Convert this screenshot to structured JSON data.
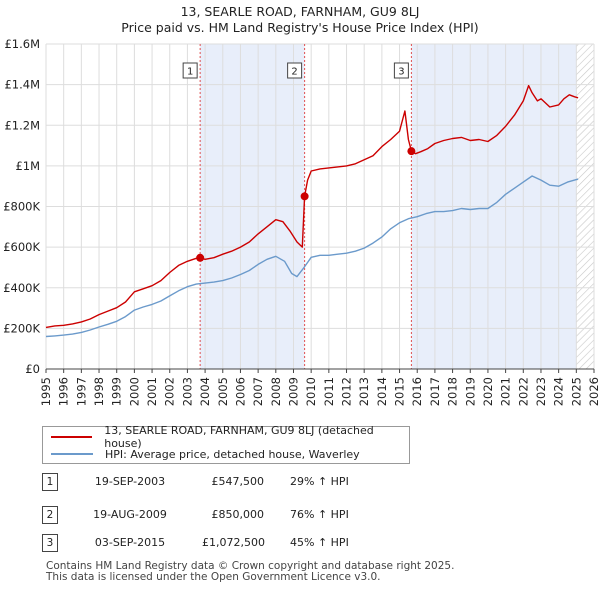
{
  "title_line1": "13, SEARLE ROAD, FARNHAM, GU9 8LJ",
  "title_line2": "Price paid vs. HM Land Registry's House Price Index (HPI)",
  "legend": [
    {
      "label": "13, SEARLE ROAD, FARNHAM, GU9 8LJ (detached house)",
      "color": "#cc0000"
    },
    {
      "label": "HPI: Average price, detached house, Waverley",
      "color": "#6b9acb"
    }
  ],
  "transactions": [
    {
      "num": "1",
      "date": "19-SEP-2003",
      "price": "£547,500",
      "hpi": "29% ↑ HPI"
    },
    {
      "num": "2",
      "date": "19-AUG-2009",
      "price": "£850,000",
      "hpi": "76% ↑ HPI"
    },
    {
      "num": "3",
      "date": "03-SEP-2015",
      "price": "£1,072,500",
      "hpi": "45% ↑ HPI"
    }
  ],
  "footer_line1": "Contains HM Land Registry data © Crown copyright and database right 2025.",
  "footer_line2": "This data is licensed under the Open Government Licence v3.0.",
  "chart_data": {
    "type": "line",
    "title": "13, SEARLE ROAD, FARNHAM, GU9 8LJ — Price paid vs. HM Land Registry's House Price Index (HPI)",
    "xlabel": "",
    "ylabel": "",
    "xlim": [
      1995,
      2026
    ],
    "ylim": [
      0,
      1600000
    ],
    "x_ticks": [
      "1995",
      "1996",
      "1997",
      "1998",
      "1999",
      "2000",
      "2001",
      "2002",
      "2003",
      "2004",
      "2005",
      "2006",
      "2007",
      "2008",
      "2009",
      "2010",
      "2011",
      "2012",
      "2013",
      "2014",
      "2015",
      "2016",
      "2017",
      "2018",
      "2019",
      "2020",
      "2021",
      "2022",
      "2023",
      "2024",
      "2025",
      "2026"
    ],
    "y_ticks": [
      {
        "value": 0,
        "label": "£0"
      },
      {
        "value": 200000,
        "label": "£200K"
      },
      {
        "value": 400000,
        "label": "£400K"
      },
      {
        "value": 600000,
        "label": "£600K"
      },
      {
        "value": 800000,
        "label": "£800K"
      },
      {
        "value": 1000000,
        "label": "£1M"
      },
      {
        "value": 1200000,
        "label": "£1.2M"
      },
      {
        "value": 1400000,
        "label": "£1.4M"
      },
      {
        "value": 1600000,
        "label": "£1.6M"
      }
    ],
    "grid": true,
    "shaded_periods": [
      [
        2003.72,
        2009.63
      ],
      [
        2015.67,
        2025.0
      ]
    ],
    "hatched_period": [
      2025.0,
      2026.0
    ],
    "series": [
      {
        "name": "13, SEARLE ROAD, FARNHAM, GU9 8LJ (detached house)",
        "color": "#cc0000",
        "x": [
          1995.0,
          1995.5,
          1996.0,
          1996.5,
          1997.0,
          1997.5,
          1998.0,
          1998.5,
          1999.0,
          1999.5,
          2000.0,
          2000.5,
          2001.0,
          2001.5,
          2002.0,
          2002.5,
          2003.0,
          2003.5,
          2003.72,
          2004.0,
          2004.5,
          2005.0,
          2005.5,
          2006.0,
          2006.5,
          2007.0,
          2007.5,
          2008.0,
          2008.4,
          2008.8,
          2009.2,
          2009.5,
          2009.63,
          2009.8,
          2010.0,
          2010.5,
          2011.0,
          2011.5,
          2012.0,
          2012.5,
          2013.0,
          2013.5,
          2014.0,
          2014.5,
          2015.0,
          2015.3,
          2015.5,
          2015.67,
          2015.9,
          2016.2,
          2016.6,
          2017.0,
          2017.5,
          2018.0,
          2018.5,
          2019.0,
          2019.5,
          2020.0,
          2020.5,
          2021.0,
          2021.5,
          2022.0,
          2022.3,
          2022.5,
          2022.8,
          2023.0,
          2023.5,
          2024.0,
          2024.3,
          2024.6,
          2024.9,
          2025.1
        ],
        "values": [
          205000,
          212000,
          215000,
          222000,
          232000,
          246000,
          268000,
          285000,
          302000,
          330000,
          380000,
          395000,
          410000,
          435000,
          475000,
          510000,
          530000,
          545000,
          547500,
          540000,
          548000,
          565000,
          580000,
          600000,
          625000,
          665000,
          700000,
          735000,
          725000,
          680000,
          625000,
          600000,
          850000,
          930000,
          975000,
          985000,
          990000,
          995000,
          1000000,
          1010000,
          1030000,
          1050000,
          1095000,
          1130000,
          1170000,
          1270000,
          1130000,
          1072500,
          1060000,
          1070000,
          1085000,
          1110000,
          1125000,
          1135000,
          1140000,
          1125000,
          1130000,
          1120000,
          1150000,
          1195000,
          1250000,
          1320000,
          1395000,
          1360000,
          1320000,
          1330000,
          1290000,
          1300000,
          1330000,
          1350000,
          1340000,
          1335000
        ]
      },
      {
        "name": "HPI: Average price, detached house, Waverley",
        "color": "#6b9acb",
        "x": [
          1995.0,
          1995.5,
          1996.0,
          1996.5,
          1997.0,
          1997.5,
          1998.0,
          1998.5,
          1999.0,
          1999.5,
          2000.0,
          2000.5,
          2001.0,
          2001.5,
          2002.0,
          2002.5,
          2003.0,
          2003.5,
          2004.0,
          2004.5,
          2005.0,
          2005.5,
          2006.0,
          2006.5,
          2007.0,
          2007.5,
          2008.0,
          2008.5,
          2008.9,
          2009.2,
          2009.6,
          2010.0,
          2010.5,
          2011.0,
          2011.5,
          2012.0,
          2012.5,
          2013.0,
          2013.5,
          2014.0,
          2014.5,
          2015.0,
          2015.5,
          2016.0,
          2016.5,
          2017.0,
          2017.5,
          2018.0,
          2018.5,
          2019.0,
          2019.5,
          2020.0,
          2020.5,
          2021.0,
          2021.5,
          2022.0,
          2022.5,
          2023.0,
          2023.5,
          2024.0,
          2024.5,
          2025.1
        ],
        "values": [
          160000,
          163000,
          167000,
          172000,
          180000,
          192000,
          207000,
          220000,
          235000,
          258000,
          290000,
          305000,
          318000,
          335000,
          360000,
          385000,
          405000,
          418000,
          423000,
          428000,
          435000,
          448000,
          465000,
          485000,
          515000,
          540000,
          555000,
          530000,
          470000,
          455000,
          500000,
          550000,
          560000,
          560000,
          565000,
          570000,
          580000,
          595000,
          620000,
          650000,
          690000,
          720000,
          740000,
          750000,
          765000,
          775000,
          775000,
          780000,
          790000,
          785000,
          790000,
          790000,
          820000,
          860000,
          890000,
          920000,
          950000,
          930000,
          905000,
          900000,
          920000,
          935000
        ]
      }
    ],
    "markers": [
      {
        "label": "1",
        "x": 2003.72,
        "value": 547500
      },
      {
        "label": "2",
        "x": 2009.63,
        "value": 850000
      },
      {
        "label": "3",
        "x": 2015.67,
        "value": 1072500
      }
    ]
  }
}
